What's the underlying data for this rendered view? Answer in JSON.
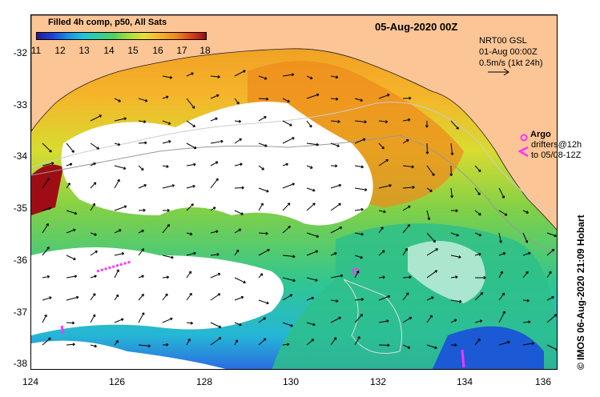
{
  "title": "05-Aug-2020 00Z",
  "legend": {
    "title": "Filled 4h comp, p50, All Sats",
    "ticks": [
      "11",
      "12",
      "13",
      "14",
      "15",
      "16",
      "17",
      "18"
    ],
    "range": [
      11,
      18
    ],
    "colors": [
      "#2a1a8c",
      "#1e3fd9",
      "#1a8fe6",
      "#20c4d8",
      "#2fd0a0",
      "#54d060",
      "#a8e03a",
      "#e8e030",
      "#f7b32c",
      "#ef8c1e",
      "#d8441a",
      "#9e0d14"
    ]
  },
  "model_info": {
    "line1": "NRT00 GSL",
    "line2": "01-Aug 00:00Z",
    "line3": "0.5m/s (1kt 24h)"
  },
  "argo": {
    "label": "Argo",
    "color": "#ff33ff"
  },
  "drifters": {
    "line1": "drifters@12h",
    "line2": "to 05/08-12Z"
  },
  "credit": "© IMOS 06-Aug-2020 21:09 Hobart",
  "axes": {
    "x_ticks": [
      "124",
      "126",
      "128",
      "130",
      "132",
      "134",
      "136"
    ],
    "y_ticks": [
      "-32",
      "-33",
      "-34",
      "-35",
      "-36",
      "-37",
      "-38"
    ],
    "lon_range": [
      124,
      136.5
    ],
    "lat_range": [
      -31.3,
      -38.1
    ]
  },
  "colors": {
    "land": "#fcc595",
    "cloud": "#ffffff",
    "arrow": "#000000",
    "contour": "#cccccc"
  }
}
